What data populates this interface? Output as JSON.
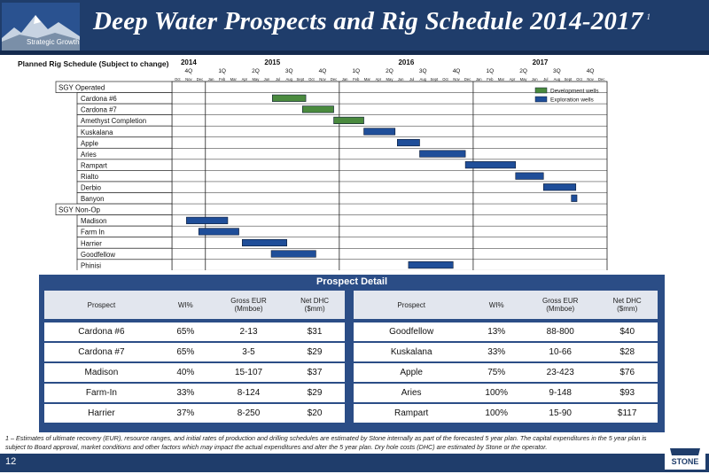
{
  "header": {
    "title": "Deep Water Prospects and Rig Schedule 2014-2017",
    "superscript": "1",
    "logo_caption": "Strategic Growth"
  },
  "schedule": {
    "label": "Planned Rig Schedule (Subject to change)",
    "years": [
      "2014",
      "2015",
      "2016",
      "2017"
    ],
    "quarters": [
      "4Q",
      "1Q",
      "2Q",
      "3Q",
      "4Q",
      "1Q",
      "2Q",
      "3Q",
      "4Q",
      "1Q",
      "2Q",
      "3Q",
      "4Q"
    ],
    "months": [
      "Oct",
      "Nov",
      "Dec",
      "Jan",
      "Feb",
      "Mar",
      "Apr",
      "May",
      "Jun",
      "Jul",
      "Aug",
      "Sept",
      "Oct",
      "Nov",
      "Dec",
      "Jan",
      "Feb",
      "Mar",
      "Apr",
      "May",
      "Jun",
      "Jul",
      "Aug",
      "Sept",
      "Oct",
      "Nov",
      "Dec",
      "Jan",
      "Feb",
      "Mar",
      "Apr",
      "May",
      "Jun",
      "Jul",
      "Aug",
      "Sept",
      "Oct",
      "Nov",
      "Dec"
    ],
    "legend": [
      {
        "label": "Development wells",
        "color": "#4a8a3e"
      },
      {
        "label": "Exploration wells",
        "color": "#1f4e99"
      }
    ],
    "rows": [
      {
        "label": "SGY Operated",
        "group": true
      },
      {
        "label": "Cardona #6",
        "type": "dev",
        "start": 9,
        "end": 12
      },
      {
        "label": "Cardona #7",
        "type": "dev",
        "start": 11.7,
        "end": 14.5
      },
      {
        "label": "Amethyst Completion",
        "type": "dev",
        "start": 14.5,
        "end": 17.2
      },
      {
        "label": "Kuskalana",
        "type": "exp",
        "start": 17.2,
        "end": 20
      },
      {
        "label": "Apple",
        "type": "exp",
        "start": 20.2,
        "end": 22.2
      },
      {
        "label": "Aries",
        "type": "exp",
        "start": 22.2,
        "end": 26.3
      },
      {
        "label": "Rampart",
        "type": "exp",
        "start": 26.3,
        "end": 30.8
      },
      {
        "label": "Rialto",
        "type": "exp",
        "start": 30.8,
        "end": 33.3
      },
      {
        "label": "Derbio",
        "type": "exp",
        "start": 33.3,
        "end": 36.2
      },
      {
        "label": "Banyon",
        "type": "exp",
        "start": 35.8,
        "end": 36.3
      },
      {
        "label": "SGY Non-Op",
        "group": true
      },
      {
        "label": "Madison",
        "type": "exp",
        "start": 1.3,
        "end": 5
      },
      {
        "label": "Farm In",
        "type": "exp",
        "start": 2.4,
        "end": 6
      },
      {
        "label": "Harrier",
        "type": "exp",
        "start": 6.3,
        "end": 10.3
      },
      {
        "label": "Goodfellow",
        "type": "exp",
        "start": 8.9,
        "end": 12.9
      },
      {
        "label": "Phinisi",
        "type": "exp",
        "start": 21.2,
        "end": 25.2
      }
    ]
  },
  "detail": {
    "title": "Prospect Detail",
    "headers": [
      "Prospect",
      "WI%",
      "Gross EUR\n(Mmboe)",
      "Net DHC\n($mm)"
    ],
    "left": [
      [
        "Cardona #6",
        "65%",
        "2-13",
        "$31"
      ],
      [
        "Cardona #7",
        "65%",
        "3-5",
        "$29"
      ],
      [
        "Madison",
        "40%",
        "15-107",
        "$37"
      ],
      [
        "Farm-In",
        "33%",
        "8-124",
        "$29"
      ],
      [
        "Harrier",
        "37%",
        "8-250",
        "$20"
      ]
    ],
    "right": [
      [
        "Goodfellow",
        "13%",
        "88-800",
        "$40"
      ],
      [
        "Kuskalana",
        "33%",
        "10-66",
        "$28"
      ],
      [
        "Apple",
        "75%",
        "23-423",
        "$76"
      ],
      [
        "Aries",
        "100%",
        "9-148",
        "$93"
      ],
      [
        "Rampart",
        "100%",
        "15-90",
        "$117"
      ]
    ]
  },
  "footnote": "1 – Estimates of ultimate recovery (EUR), resource ranges, and initial rates of production and drilling schedules are estimated by Stone internally as part of the forecasted 5 year plan. The capital expenditures in the 5 year plan is subject to Board approval, market conditions and other factors which may impact the actual expenditures and alter the 5 year plan. Dry hole costs (DHC) are estimated by Stone or the operator.",
  "page_number": "12",
  "company_logo": "STONE"
}
